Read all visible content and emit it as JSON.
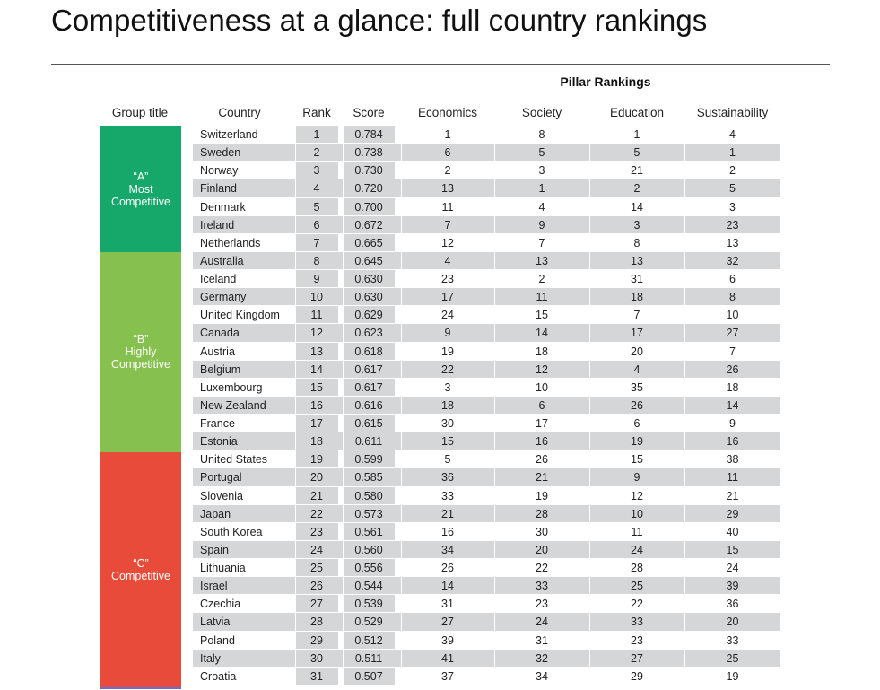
{
  "title": "Competitiveness at a glance: full country rankings",
  "pillar_title": "Pillar Rankings",
  "headers": {
    "group": "Group title",
    "country": "Country",
    "rank": "Rank",
    "score": "Score",
    "economics": "Economics",
    "society": "Society",
    "education": "Education",
    "sustainability": "Sustainability"
  },
  "groups": [
    {
      "label": "“A”\nMost\nCompetitive",
      "color": "#16a86a"
    },
    {
      "label": "“B”\nHighly\nCompetitive",
      "color": "#86c04e"
    },
    {
      "label": "“C”\nCompetitive",
      "color": "#e84b39"
    }
  ],
  "rows": [
    {
      "country": "Switzerland",
      "rank": "1",
      "score": "0.784",
      "economics": "1",
      "society": "8",
      "education": "1",
      "sustainability": "4"
    },
    {
      "country": "Sweden",
      "rank": "2",
      "score": "0.738",
      "economics": "6",
      "society": "5",
      "education": "5",
      "sustainability": "1"
    },
    {
      "country": "Norway",
      "rank": "3",
      "score": "0.730",
      "economics": "2",
      "society": "3",
      "education": "21",
      "sustainability": "2"
    },
    {
      "country": "Finland",
      "rank": "4",
      "score": "0.720",
      "economics": "13",
      "society": "1",
      "education": "2",
      "sustainability": "5"
    },
    {
      "country": "Denmark",
      "rank": "5",
      "score": "0.700",
      "economics": "11",
      "society": "4",
      "education": "14",
      "sustainability": "3"
    },
    {
      "country": "Ireland",
      "rank": "6",
      "score": "0.672",
      "economics": "7",
      "society": "9",
      "education": "3",
      "sustainability": "23"
    },
    {
      "country": "Netherlands",
      "rank": "7",
      "score": "0.665",
      "economics": "12",
      "society": "7",
      "education": "8",
      "sustainability": "13"
    },
    {
      "country": "Australia",
      "rank": "8",
      "score": "0.645",
      "economics": "4",
      "society": "13",
      "education": "13",
      "sustainability": "32"
    },
    {
      "country": "Iceland",
      "rank": "9",
      "score": "0.630",
      "economics": "23",
      "society": "2",
      "education": "31",
      "sustainability": "6"
    },
    {
      "country": "Germany",
      "rank": "10",
      "score": "0.630",
      "economics": "17",
      "society": "11",
      "education": "18",
      "sustainability": "8"
    },
    {
      "country": "United Kingdom",
      "rank": "11",
      "score": "0.629",
      "economics": "24",
      "society": "15",
      "education": "7",
      "sustainability": "10"
    },
    {
      "country": "Canada",
      "rank": "12",
      "score": "0.623",
      "economics": "9",
      "society": "14",
      "education": "17",
      "sustainability": "27"
    },
    {
      "country": "Austria",
      "rank": "13",
      "score": "0.618",
      "economics": "19",
      "society": "18",
      "education": "20",
      "sustainability": "7"
    },
    {
      "country": "Belgium",
      "rank": "14",
      "score": "0.617",
      "economics": "22",
      "society": "12",
      "education": "4",
      "sustainability": "26"
    },
    {
      "country": "Luxembourg",
      "rank": "15",
      "score": "0.617",
      "economics": "3",
      "society": "10",
      "education": "35",
      "sustainability": "18"
    },
    {
      "country": "New Zealand",
      "rank": "16",
      "score": "0.616",
      "economics": "18",
      "society": "6",
      "education": "26",
      "sustainability": "14"
    },
    {
      "country": "France",
      "rank": "17",
      "score": "0.615",
      "economics": "30",
      "society": "17",
      "education": "6",
      "sustainability": "9"
    },
    {
      "country": "Estonia",
      "rank": "18",
      "score": "0.611",
      "economics": "15",
      "society": "16",
      "education": "19",
      "sustainability": "16"
    },
    {
      "country": "United States",
      "rank": "19",
      "score": "0.599",
      "economics": "5",
      "society": "26",
      "education": "15",
      "sustainability": "38"
    },
    {
      "country": "Portugal",
      "rank": "20",
      "score": "0.585",
      "economics": "36",
      "society": "21",
      "education": "9",
      "sustainability": "11"
    },
    {
      "country": "Slovenia",
      "rank": "21",
      "score": "0.580",
      "economics": "33",
      "society": "19",
      "education": "12",
      "sustainability": "21"
    },
    {
      "country": "Japan",
      "rank": "22",
      "score": "0.573",
      "economics": "21",
      "society": "28",
      "education": "10",
      "sustainability": "29"
    },
    {
      "country": "South Korea",
      "rank": "23",
      "score": "0.561",
      "economics": "16",
      "society": "30",
      "education": "11",
      "sustainability": "40"
    },
    {
      "country": "Spain",
      "rank": "24",
      "score": "0.560",
      "economics": "34",
      "society": "20",
      "education": "24",
      "sustainability": "15"
    },
    {
      "country": "Lithuania",
      "rank": "25",
      "score": "0.556",
      "economics": "26",
      "society": "22",
      "education": "28",
      "sustainability": "24"
    },
    {
      "country": "Israel",
      "rank": "26",
      "score": "0.544",
      "economics": "14",
      "society": "33",
      "education": "25",
      "sustainability": "39"
    },
    {
      "country": "Czechia",
      "rank": "27",
      "score": "0.539",
      "economics": "31",
      "society": "23",
      "education": "22",
      "sustainability": "36"
    },
    {
      "country": "Latvia",
      "rank": "28",
      "score": "0.529",
      "economics": "27",
      "society": "24",
      "education": "33",
      "sustainability": "20"
    },
    {
      "country": "Poland",
      "rank": "29",
      "score": "0.512",
      "economics": "39",
      "society": "31",
      "education": "23",
      "sustainability": "33"
    },
    {
      "country": "Italy",
      "rank": "30",
      "score": "0.511",
      "economics": "41",
      "society": "32",
      "education": "27",
      "sustainability": "25"
    },
    {
      "country": "Croatia",
      "rank": "31",
      "score": "0.507",
      "economics": "37",
      "society": "34",
      "education": "29",
      "sustainability": "19"
    }
  ]
}
